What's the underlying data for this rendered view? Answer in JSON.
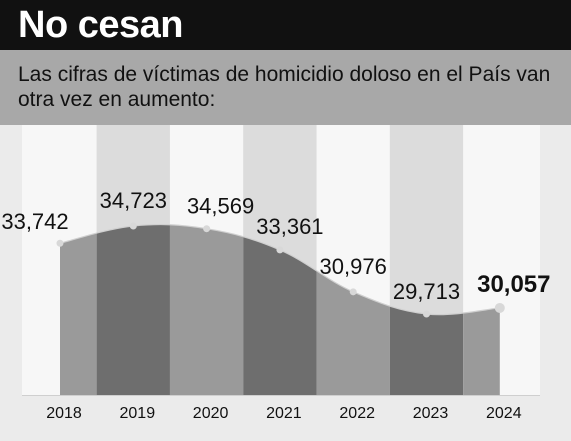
{
  "header": {
    "title": "No cesan",
    "subtitle": "Las cifras de víctimas de homicidio doloso en el País van otra vez en aumento:"
  },
  "colors": {
    "header_bg": "#111111",
    "band_bg": "#a8a8a8",
    "column_light": "#f7f7f7",
    "column_dark": "#dcdcdc",
    "area_light": "#9a9a9a",
    "area_dark": "#6e6e6e",
    "point": "#d8d8d8",
    "text": "#111111"
  },
  "chart_data": {
    "type": "area",
    "title": "No cesan",
    "categories": [
      "2018",
      "2019",
      "2020",
      "2021",
      "2022",
      "2023",
      "2024"
    ],
    "values": [
      33742,
      34723,
      34569,
      33361,
      30976,
      29713,
      30057
    ],
    "value_labels": [
      "33,742",
      "34,723",
      "34,569",
      "33,361",
      "30,976",
      "29,713",
      "30,057"
    ],
    "highlight_index": 6,
    "xlabel": "",
    "ylabel": "",
    "grid": false
  }
}
